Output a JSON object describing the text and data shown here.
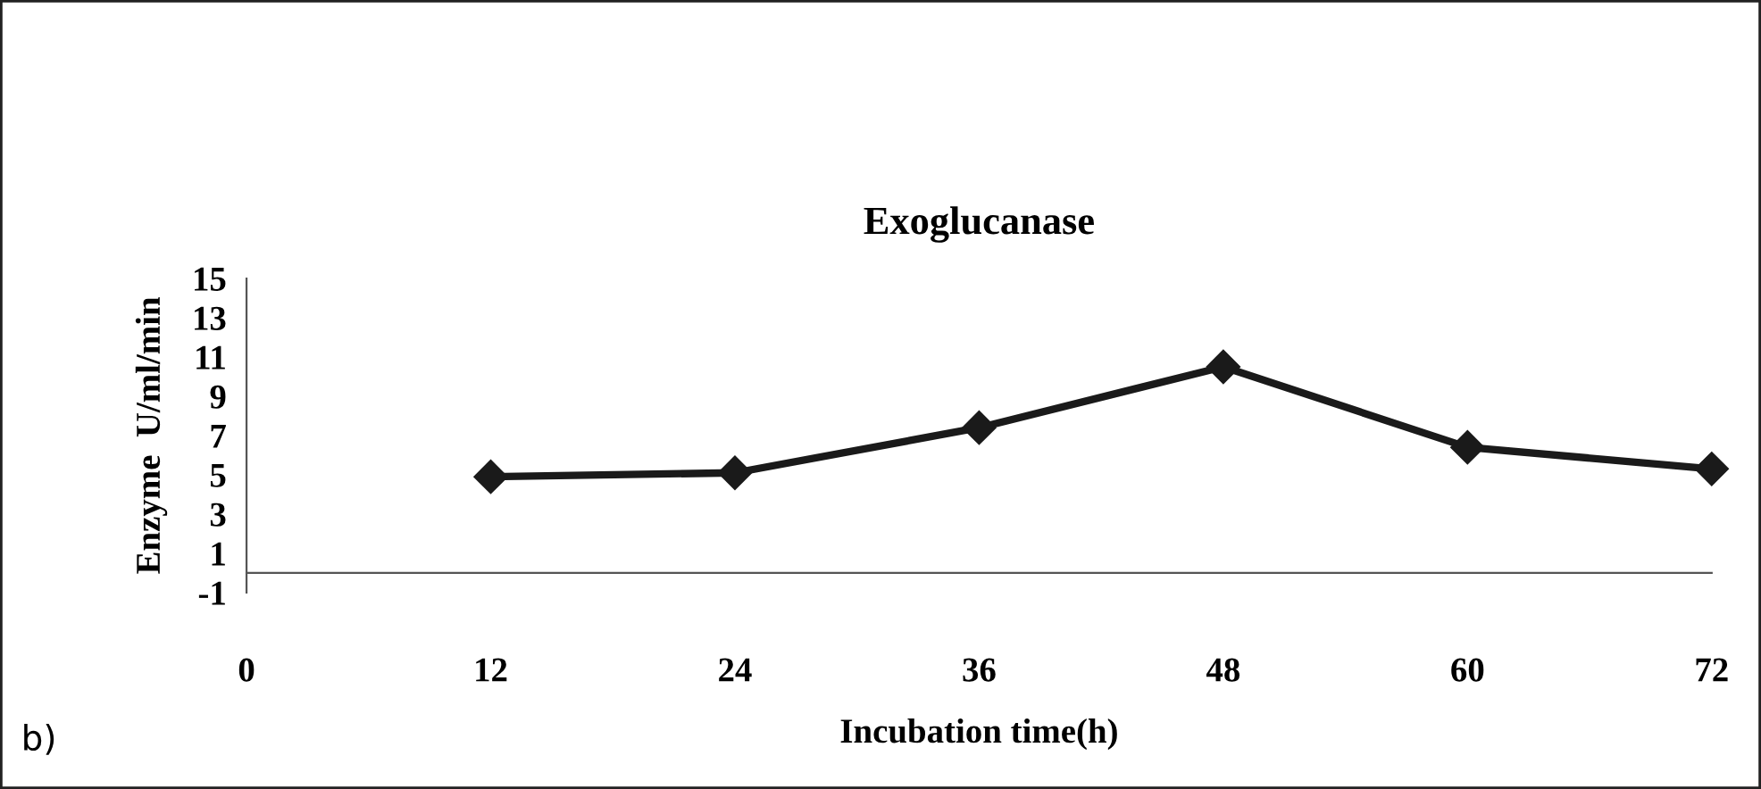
{
  "chart_data": {
    "type": "line",
    "title": "Exoglucanase",
    "xlabel": "Incubation time(h)",
    "ylabel": "Enzyme  U/ml/min",
    "annotations": [
      "b)"
    ],
    "x": [
      12,
      24,
      36,
      48,
      60,
      72
    ],
    "series": [
      {
        "color": "#1a1a1a",
        "values": [
          4.9,
          5.1,
          7.4,
          10.5,
          6.4,
          5.3
        ]
      }
    ],
    "xlim": [
      0,
      72
    ],
    "xticks": [
      0,
      12,
      24,
      36,
      48,
      60,
      72
    ],
    "ylim": [
      -1,
      15
    ],
    "yticks": [
      -1,
      1,
      3,
      5,
      7,
      9,
      11,
      13,
      15
    ],
    "grid": false,
    "legend": false,
    "marker": "diamond",
    "line_style": "solid"
  }
}
